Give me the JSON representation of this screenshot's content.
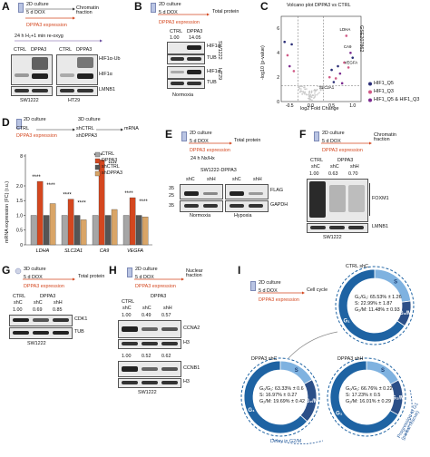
{
  "colors": {
    "accent": "#d4471f",
    "ctrl": "#a6a6a6",
    "dppa3": "#d4471f",
    "shctrl": "#555555",
    "shdppa3": "#d9a567",
    "volc_q5": "#2b2f78",
    "volc_q1": "#d15a86",
    "volc_both": "#7b2a8f"
  },
  "panelA": {
    "label": "A",
    "culture": "2D culture",
    "dox": "5 d DOX",
    "expr": "DPPA3 expression",
    "fraction": "Chromatin\nfraction",
    "treat": "24 h H₂+1 min re-oxyg",
    "ctrl": "CTRL",
    "dppa3": "DPPA3",
    "hif_ub": "HIF1α-Ub",
    "hif": "HIF1α",
    "lmnb1": "LMNB1",
    "cell1": "SW1222",
    "cell2": "HT29"
  },
  "panelB": {
    "label": "B",
    "culture": "2D culture",
    "dox": "5 d DOX",
    "expr": "DPPA3 expression",
    "total": "Total protein",
    "ctrl": "CTRL",
    "dppa3": "DPPA3",
    "v1": "1.00",
    "v2": "14.05",
    "hif": "HIF1α",
    "tub": "TUB",
    "sw": "SW1222",
    "ht": "HT29",
    "foot": "Normoxia"
  },
  "panelC": {
    "label": "C",
    "title": "Volcano plot DPPA3 vs CTRL",
    "xlabel": "log2 Fold Change",
    "ylabel": "-log10 (p-value)",
    "gse": "GSE207862",
    "legend": [
      "HIF1_Q5",
      "HIF1_Q3",
      "HIF1_Q5 & HIF1_Q3"
    ],
    "genes": [
      "LDHA",
      "CA9",
      "VEGFA",
      "SLC2A1"
    ],
    "xticks": [
      "-0.5",
      "0.0",
      "0.5",
      "1.0"
    ],
    "yticks": [
      "0",
      "2",
      "4",
      "6"
    ]
  },
  "chart_data": {
    "type": "bar",
    "title": "",
    "ylabel": "mRNA expression (FC) (r.u.)",
    "categories": [
      "LDHA",
      "SLC2A1",
      "CA9",
      "VEGFA"
    ],
    "ylim": [
      0,
      8
    ],
    "yticks": [
      "0",
      "0.5",
      "1.0",
      "1.5",
      "2.0",
      "8"
    ],
    "series": [
      {
        "name": "CTRL",
        "values": [
          1.0,
          1.0,
          1.0,
          1.0
        ]
      },
      {
        "name": "DPPA3",
        "values": [
          2.9,
          1.55,
          7.2,
          1.6
        ]
      },
      {
        "name": "shCTRL",
        "values": [
          1.0,
          1.0,
          1.0,
          1.0
        ]
      },
      {
        "name": "shDPPA3",
        "values": [
          1.4,
          0.85,
          1.2,
          0.95
        ]
      }
    ],
    "annotations": [
      "****",
      "****",
      "****",
      "****",
      "****",
      "****",
      "****",
      "****"
    ]
  },
  "panelD": {
    "label": "D",
    "culture2d": "2D culture",
    "culture3d": "3D culture",
    "ctrl": "CTRL",
    "dppa3expr": "DPPA3 expression",
    "shctrl": "shCTRL",
    "shdppa3": "shDPPA3",
    "mrna": "mRNA",
    "legend": [
      "CTRL",
      "DPPA3",
      "shCTRL",
      "shDPPA3"
    ]
  },
  "panelE": {
    "label": "E",
    "culture": "2D culture",
    "dox": "5 d DOX",
    "expr": "DPPA3 expression",
    "total": "Total protein",
    "treat": "24 h Nx/Hx",
    "title": "SW1222-DPPA3",
    "lanes": [
      "shC",
      "shH",
      "shC",
      "shH"
    ],
    "flag": "FLAG",
    "gapdh": "GAPDH",
    "mw25": "25",
    "mw35": "35",
    "nx": "Normoxia",
    "hx": "Hypoxia"
  },
  "panelF": {
    "label": "F",
    "culture": "2D culture",
    "dox": "5 d DOX",
    "expr": "DPPA3 expression",
    "fraction": "Chromatin\nfraction",
    "ctrl": "CTRL",
    "dppa3": "DPPA3",
    "lanes": [
      "shC",
      "shC",
      "shH"
    ],
    "vals": [
      "1.00",
      "0.63",
      "0.70"
    ],
    "foxm1": "FOXM1",
    "lmnb1": "LMNB1",
    "cell": "SW1222"
  },
  "panelG": {
    "label": "G",
    "culture": "3D culture",
    "dox": "5 d DOX",
    "expr": "DPPA3 expression",
    "total": "Total protein",
    "ctrl": "CTRL",
    "dppa3": "DPPA3",
    "lanes": [
      "shC",
      "shC",
      "shH"
    ],
    "vals": [
      "1.00",
      "0.69",
      "0.85"
    ],
    "cdk1": "CDK1",
    "tub": "TUB",
    "cell": "SW1222"
  },
  "panelH": {
    "label": "H",
    "culture": "2D culture",
    "dox": "5 d DOX",
    "expr": "DPPA3 expression",
    "fraction": "Nuclear\nfraction",
    "ctrl": "CTRL",
    "dppa3": "DPPA3",
    "lanes": [
      "shC",
      "shC",
      "shH"
    ],
    "vals1": [
      "1.00",
      "0.49",
      "0.57"
    ],
    "vals2": [
      "1.00",
      "0.52",
      "0.62"
    ],
    "ccna2": "CCNA2",
    "h3a": "H3",
    "ccnb1": "CCNB1",
    "h3b": "H3",
    "cell": "SW1222"
  },
  "panelI": {
    "label": "I",
    "culture": "2D culture",
    "dox": "5 d DOX",
    "expr": "DPPA3 expression",
    "cc": "Cell cycle",
    "rings": [
      {
        "title": "CTRL shC",
        "g1": "G₁",
        "s": "S",
        "g2m": "G₂/M",
        "t1": "G₀/G₁: 65.53% ± 1.26",
        "t2": "S: 22.99% ± 1.87",
        "t3": "G₂/M: 11.48% ± 0.93",
        "g1f": 0.655,
        "sf": 0.23,
        "g2mf": 0.115
      },
      {
        "title": "DPPA3 shC",
        "g1": "G₁",
        "s": "S",
        "g2m": "G₂/M",
        "t1": "G₀/G₁: 63.33% ± 0.6",
        "t2": "S: 16.97% ± 0.27",
        "t3": "G₂/M: 19.69% ± 0.42",
        "g1f": 0.633,
        "sf": 0.17,
        "g2mf": 0.197
      },
      {
        "title": "DPPA3 shH",
        "g1": "G₁",
        "s": "S",
        "g2m": "G₂/M",
        "t1": "G₀/G₁: 66.76% ± 0.22",
        "t2": "S: 17.23% ± 0.5",
        "t3": "G₂/M: 16.01% ± 0.29",
        "g1f": 0.668,
        "sf": 0.172,
        "g2mf": 0.16
      }
    ],
    "delay": "Delay in G2/M",
    "progress": "Progression to G1\n(partial rescue)"
  }
}
